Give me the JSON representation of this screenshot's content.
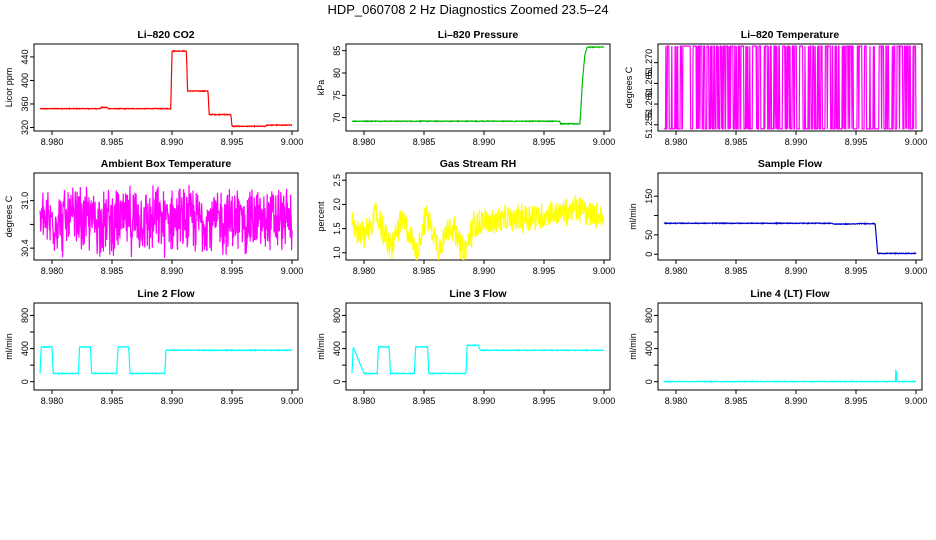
{
  "title": "HDP_060708  2 Hz Diagnostics Zoomed 23.5–24",
  "chart_data": [
    {
      "type": "line",
      "title": "Li–820 CO2",
      "xlabel": "",
      "ylabel": "Licor ppm",
      "color": "#ff0000",
      "xlim": [
        8.9785,
        9.0005
      ],
      "ylim": [
        314,
        462
      ],
      "xticks": [
        8.98,
        8.985,
        8.99,
        8.995,
        9.0
      ],
      "xtick_labels": [
        "8.980",
        "8.985",
        "8.990",
        "8.995",
        "9.000"
      ],
      "yticks": [
        320,
        360,
        400,
        440
      ],
      "ytick_labels": [
        "320",
        "360",
        "400",
        "440"
      ],
      "series": [
        {
          "x": [
            8.979,
            8.984,
            8.9841,
            8.9846,
            8.9847,
            8.9899,
            8.99,
            8.9912,
            8.9913,
            8.993,
            8.9931,
            8.9949,
            8.995,
            8.9978,
            8.9979,
            9.0
          ],
          "y": [
            352,
            352,
            354,
            354,
            352,
            352,
            450,
            450,
            382,
            382,
            342,
            342,
            322,
            322,
            324,
            324
          ]
        }
      ]
    },
    {
      "type": "line",
      "title": "Li–820 Pressure",
      "xlabel": "",
      "ylabel": "kPa",
      "color": "#00bb00",
      "xlim": [
        8.9785,
        9.0005
      ],
      "ylim": [
        67,
        86.5
      ],
      "xticks": [
        8.98,
        8.985,
        8.99,
        8.995,
        9.0
      ],
      "xtick_labels": [
        "8.980",
        "8.985",
        "8.990",
        "8.995",
        "9.000"
      ],
      "yticks": [
        70,
        75,
        80,
        85
      ],
      "ytick_labels": [
        "70",
        "75",
        "80",
        "85"
      ],
      "series": [
        {
          "x": [
            8.979,
            8.9963,
            8.9964,
            8.998,
            8.9982,
            8.9984,
            8.9986,
            9.0
          ],
          "y": [
            69.2,
            69.2,
            68.6,
            68.6,
            78.0,
            84.0,
            85.8,
            85.8
          ]
        }
      ]
    },
    {
      "type": "line",
      "title": "Li–820 Temperature",
      "xlabel": "",
      "ylabel": "degrees C",
      "color": "#ff00ff",
      "xlim": [
        8.9785,
        9.0005
      ],
      "ylim": [
        51.2535,
        51.2745
      ],
      "xticks": [
        8.98,
        8.985,
        8.99,
        8.995,
        9.0
      ],
      "xtick_labels": [
        "8.980",
        "8.985",
        "8.990",
        "8.995",
        "9.000"
      ],
      "yticks": [
        51.255,
        51.26,
        51.265,
        51.27
      ],
      "ytick_labels": [
        "51.255",
        "51.260",
        "51.265",
        "51.270"
      ],
      "series": [
        {
          "low": 51.254,
          "high": 51.274
        }
      ]
    },
    {
      "type": "line",
      "title": "Ambient Box Temperature",
      "xlabel": "",
      "ylabel": "degrees C",
      "color": "#ff00ff",
      "xlim": [
        8.9785,
        9.0005
      ],
      "ylim": [
        30.25,
        31.35
      ],
      "xticks": [
        8.98,
        8.985,
        8.99,
        8.995,
        9.0
      ],
      "xtick_labels": [
        "8.980",
        "8.985",
        "8.990",
        "8.995",
        "9.000"
      ],
      "yticks": [
        30.4,
        30.7,
        31.0
      ],
      "ytick_labels": [
        "30.4",
        "",
        "31.0"
      ],
      "series": [
        {
          "mean": 30.75,
          "spread": 0.5
        }
      ]
    },
    {
      "type": "line",
      "title": "Gas Stream RH",
      "xlabel": "",
      "ylabel": "percent",
      "color": "#ffff00",
      "xlim": [
        8.9785,
        9.0005
      ],
      "ylim": [
        0.85,
        2.65
      ],
      "xticks": [
        8.98,
        8.985,
        8.99,
        8.995,
        9.0
      ],
      "xtick_labels": [
        "8.980",
        "8.985",
        "8.990",
        "8.995",
        "9.000"
      ],
      "yticks": [
        1.0,
        1.5,
        2.0,
        2.5
      ],
      "ytick_labels": [
        "1.0",
        "1.5",
        "2.0",
        "2.5"
      ],
      "series": [
        {
          "x": [
            8.979,
            8.98,
            8.981,
            8.9822,
            8.9832,
            8.9844,
            8.9852,
            8.9862,
            8.9872,
            8.9884,
            8.9892,
            8.996,
            8.998,
            9.0
          ],
          "y": [
            1.6,
            1.3,
            1.8,
            1.1,
            1.7,
            1.0,
            1.8,
            1.1,
            1.6,
            1.0,
            1.6,
            1.8,
            1.9,
            1.7
          ]
        }
      ]
    },
    {
      "type": "line",
      "title": "Sample Flow",
      "xlabel": "",
      "ylabel": "ml/min",
      "color": "#0000cc",
      "xlim": [
        8.9785,
        9.0005
      ],
      "ylim": [
        -15,
        210
      ],
      "xticks": [
        8.98,
        8.985,
        8.99,
        8.995,
        9.0
      ],
      "xtick_labels": [
        "8.980",
        "8.985",
        "8.990",
        "8.995",
        "9.000"
      ],
      "yticks": [
        0,
        50,
        100,
        150
      ],
      "ytick_labels": [
        "0",
        "50",
        "",
        "150"
      ],
      "series": [
        {
          "x": [
            8.979,
            8.993,
            8.9931,
            8.995,
            8.9951,
            8.9966,
            8.9968,
            9.0
          ],
          "y": [
            80,
            80,
            78,
            78,
            79,
            79,
            2,
            2
          ]
        }
      ]
    },
    {
      "type": "line",
      "title": "Line 2 Flow",
      "xlabel": "",
      "ylabel": "ml/min",
      "color": "#00ffff",
      "xlim": [
        8.9785,
        9.0005
      ],
      "ylim": [
        -100,
        950
      ],
      "xticks": [
        8.98,
        8.985,
        8.99,
        8.995,
        9.0
      ],
      "xtick_labels": [
        "8.980",
        "8.985",
        "8.990",
        "8.995",
        "9.000"
      ],
      "yticks": [
        0,
        200,
        400,
        600,
        800
      ],
      "ytick_labels": [
        "0",
        "",
        "400",
        "",
        "800"
      ],
      "series": [
        {
          "x": [
            8.979,
            8.9791,
            8.98,
            8.9801,
            8.981,
            8.9811,
            8.9822,
            8.9823,
            8.9832,
            8.9833,
            8.9842,
            8.9843,
            8.9854,
            8.9855,
            8.9864,
            8.9865,
            8.9874,
            8.9875,
            8.9884,
            8.9885,
            8.9894,
            8.9895,
            9.0
          ],
          "y": [
            100,
            420,
            420,
            100,
            100,
            100,
            100,
            420,
            420,
            100,
            100,
            100,
            100,
            420,
            420,
            100,
            100,
            100,
            100,
            100,
            100,
            380,
            380
          ]
        }
      ]
    },
    {
      "type": "line",
      "title": "Line 3 Flow",
      "xlabel": "",
      "ylabel": "ml/min",
      "color": "#00ffff",
      "xlim": [
        8.9785,
        9.0005
      ],
      "ylim": [
        -100,
        950
      ],
      "xticks": [
        8.98,
        8.985,
        8.99,
        8.995,
        9.0
      ],
      "xtick_labels": [
        "8.980",
        "8.985",
        "8.990",
        "8.995",
        "9.000"
      ],
      "yticks": [
        0,
        200,
        400,
        600,
        800
      ],
      "ytick_labels": [
        "0",
        "",
        "400",
        "",
        "800"
      ],
      "series": [
        {
          "x": [
            8.979,
            8.9791,
            8.98,
            8.9801,
            8.9811,
            8.9812,
            8.9821,
            8.9822,
            8.9832,
            8.9833,
            8.9842,
            8.9843,
            8.9853,
            8.9854,
            8.9863,
            8.9864,
            8.9874,
            8.9875,
            8.9885,
            8.9886,
            8.9895,
            8.9897,
            9.0
          ],
          "y": [
            100,
            420,
            100,
            100,
            100,
            420,
            420,
            100,
            100,
            100,
            100,
            420,
            420,
            100,
            100,
            100,
            100,
            100,
            100,
            440,
            440,
            380,
            380
          ]
        }
      ]
    },
    {
      "type": "line",
      "title": "Line 4 (LT) Flow",
      "xlabel": "",
      "ylabel": "ml/min",
      "color": "#00ffff",
      "xlim": [
        8.9785,
        9.0005
      ],
      "ylim": [
        -100,
        950
      ],
      "xticks": [
        8.98,
        8.985,
        8.99,
        8.995,
        9.0
      ],
      "xtick_labels": [
        "8.980",
        "8.985",
        "8.990",
        "8.995",
        "9.000"
      ],
      "yticks": [
        0,
        200,
        400,
        600,
        800
      ],
      "ytick_labels": [
        "0",
        "",
        "400",
        "",
        "800"
      ],
      "series": [
        {
          "x": [
            8.979,
            8.9983,
            8.99832,
            8.99836,
            8.9984,
            9.0
          ],
          "y": [
            2,
            2,
            130,
            130,
            2,
            2
          ]
        }
      ]
    }
  ]
}
